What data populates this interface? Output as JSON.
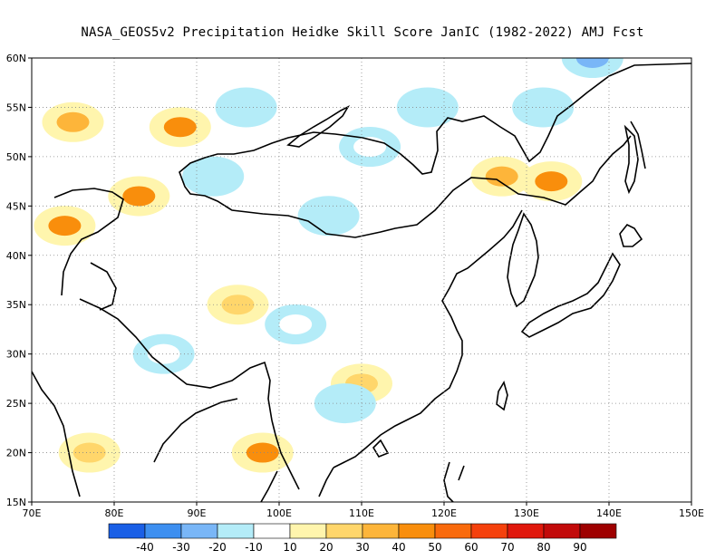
{
  "title": "NASA_GEOS5v2  Precipitation Heidke Skill Score JanIC (1982-2022) AMJ Fcst",
  "chart_data": {
    "type": "heatmap",
    "title": "NASA_GEOS5v2  Precipitation Heidke Skill Score JanIC (1982-2022) AMJ Fcst",
    "x_range": [
      70,
      150
    ],
    "y_range": [
      15,
      60
    ],
    "x_ticks": [
      {
        "value": 70,
        "label": "70E"
      },
      {
        "value": 80,
        "label": "80E"
      },
      {
        "value": 90,
        "label": "90E"
      },
      {
        "value": 100,
        "label": "100E"
      },
      {
        "value": 110,
        "label": "110E"
      },
      {
        "value": 120,
        "label": "120E"
      },
      {
        "value": 130,
        "label": "130E"
      },
      {
        "value": 140,
        "label": "140E"
      },
      {
        "value": 150,
        "label": "150E"
      }
    ],
    "y_ticks": [
      {
        "value": 15,
        "label": "15N"
      },
      {
        "value": 20,
        "label": "20N"
      },
      {
        "value": 25,
        "label": "25N"
      },
      {
        "value": 30,
        "label": "30N"
      },
      {
        "value": 35,
        "label": "35N"
      },
      {
        "value": 40,
        "label": "40N"
      },
      {
        "value": 45,
        "label": "45N"
      },
      {
        "value": 50,
        "label": "50N"
      },
      {
        "value": 55,
        "label": "55N"
      },
      {
        "value": 60,
        "label": "60N"
      }
    ],
    "grid": true,
    "colorbar": {
      "colors": [
        "#1a5fe6",
        "#3d8ff0",
        "#79b6f7",
        "#b4ecf8",
        "#ffffff",
        "#fff5ad",
        "#ffd66b",
        "#fdb53a",
        "#f98e0c",
        "#f96a0c",
        "#f5410c",
        "#e0180c",
        "#c20a0a",
        "#9e0000"
      ],
      "labels": [
        "-40",
        "-30",
        "-20",
        "-10",
        "10",
        "20",
        "30",
        "40",
        "50",
        "60",
        "70",
        "80",
        "90"
      ]
    },
    "regions": [
      {
        "lon": 74,
        "lat": 43,
        "value": 40
      },
      {
        "lon": 75,
        "lat": 53.5,
        "value": 30
      },
      {
        "lon": 83,
        "lat": 46,
        "value": 40
      },
      {
        "lon": 88,
        "lat": 53,
        "value": 40
      },
      {
        "lon": 133,
        "lat": 47.5,
        "value": 40
      },
      {
        "lon": 127,
        "lat": 48,
        "value": 30
      },
      {
        "lon": 98,
        "lat": 20,
        "value": 40
      },
      {
        "lon": 77,
        "lat": 20,
        "value": 20
      },
      {
        "lon": 95,
        "lat": 35,
        "value": 20
      },
      {
        "lon": 110,
        "lat": 27,
        "value": 20
      },
      {
        "lon": 96,
        "lat": 55,
        "value": -20
      },
      {
        "lon": 118,
        "lat": 55,
        "value": -20
      },
      {
        "lon": 132,
        "lat": 55,
        "value": -20
      },
      {
        "lon": 138,
        "lat": 60,
        "value": -30
      },
      {
        "lon": 92,
        "lat": 48,
        "value": -20
      },
      {
        "lon": 106,
        "lat": 44,
        "value": -20
      },
      {
        "lon": 102,
        "lat": 33,
        "value": -10
      },
      {
        "lon": 108,
        "lat": 25,
        "value": -20
      },
      {
        "lon": 111,
        "lat": 51,
        "value": -10
      },
      {
        "lon": 86,
        "lat": 30,
        "value": -10
      }
    ]
  }
}
